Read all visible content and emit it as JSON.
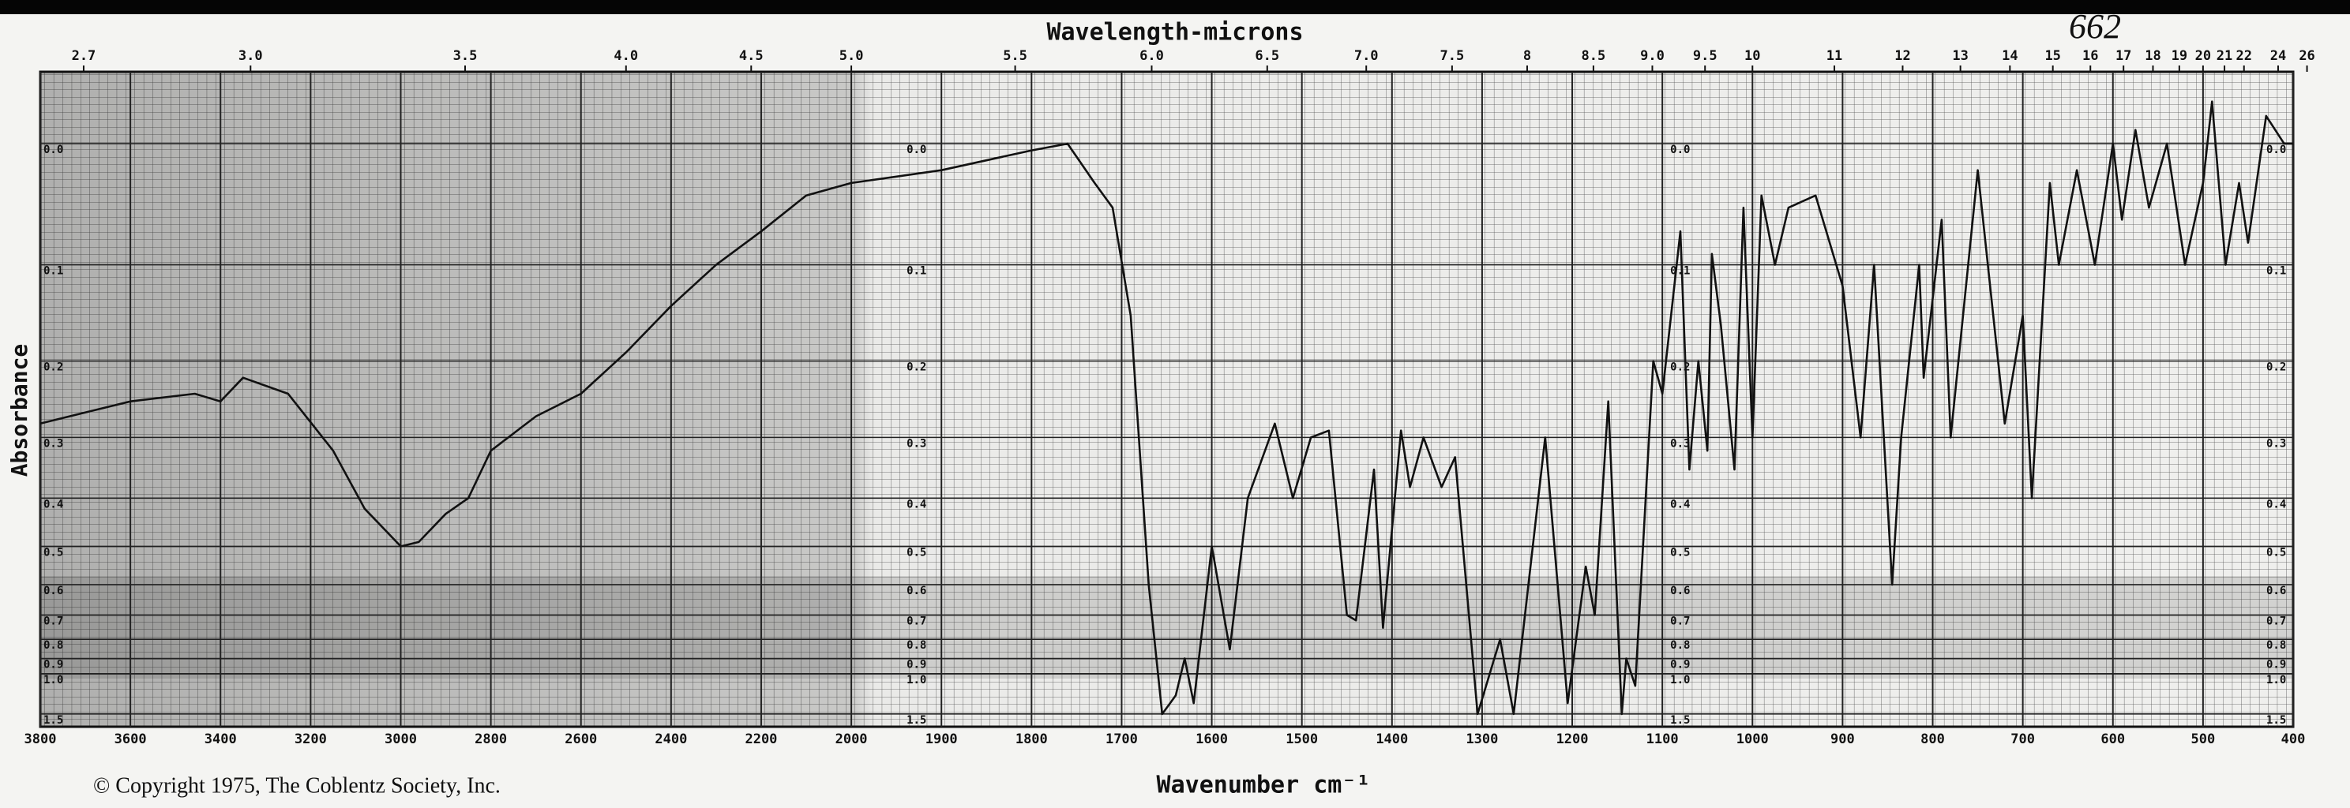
{
  "chart_data": {
    "type": "line",
    "title": "Wavelength-microns",
    "x_label": "Wavenumber cm⁻¹",
    "y_label": "Absorbance",
    "copyright": "© Copyright 1975, The Coblentz Society, Inc.",
    "annotations": [
      "662"
    ],
    "xscale": "piecewise",
    "xbreak": 2000,
    "yscale": "transmittance",
    "grid": true,
    "color": "#111111",
    "xlim": [
      3800,
      400
    ],
    "ylim": [
      -0.05,
      2.0
    ],
    "xticks": [
      3800,
      3600,
      3400,
      3200,
      3000,
      2800,
      2600,
      2400,
      2200,
      2000,
      1900,
      1800,
      1700,
      1600,
      1500,
      1400,
      1300,
      1200,
      1100,
      1000,
      900,
      800,
      700,
      600,
      500,
      400
    ],
    "micron_ticks": [
      2.7,
      {
        "value": 3,
        "label": "3.0"
      },
      3.5,
      {
        "value": 4,
        "label": "4.0"
      },
      4.5,
      {
        "value": 5,
        "label": "5.0"
      },
      5.5,
      {
        "value": 6,
        "label": "6.0"
      },
      6.5,
      {
        "value": 7,
        "label": "7.0"
      },
      7.5,
      8,
      8.5,
      {
        "value": 9,
        "label": "9.0"
      },
      9.5,
      10,
      11,
      12,
      13,
      14,
      15,
      16,
      17,
      18,
      19,
      20,
      21,
      22,
      24,
      26
    ],
    "yticks": [
      {
        "value": 0,
        "label": "0.0"
      },
      0.1,
      0.2,
      0.3,
      0.4,
      0.5,
      0.6,
      0.7,
      0.8,
      0.9,
      {
        "value": 1,
        "label": "1.0"
      },
      1.5
    ],
    "x": [
      3800,
      3600,
      3457,
      3400,
      3350,
      3250,
      3150,
      3080,
      3000,
      2960,
      2900,
      2850,
      2800,
      2700,
      2600,
      2500,
      2400,
      2300,
      2200,
      2100,
      2000,
      1900,
      1800,
      1760,
      1730,
      1710,
      1690,
      1670,
      1655,
      1640,
      1630,
      1620,
      1600,
      1580,
      1560,
      1530,
      1510,
      1490,
      1470,
      1450,
      1440,
      1420,
      1410,
      1390,
      1380,
      1365,
      1345,
      1330,
      1305,
      1280,
      1265,
      1230,
      1205,
      1185,
      1175,
      1160,
      1145,
      1140,
      1130,
      1110,
      1100,
      1080,
      1070,
      1060,
      1050,
      1045,
      1035,
      1020,
      1010,
      1000,
      990,
      975,
      960,
      930,
      900,
      880,
      865,
      845,
      835,
      815,
      810,
      790,
      780,
      750,
      720,
      700,
      690,
      670,
      660,
      640,
      620,
      600,
      590,
      575,
      560,
      540,
      520,
      500,
      490,
      475,
      460,
      450,
      430,
      410,
      400
    ],
    "values": [
      0.28,
      0.25,
      0.24,
      0.25,
      0.22,
      0.24,
      0.32,
      0.42,
      0.5,
      0.49,
      0.43,
      0.4,
      0.32,
      0.27,
      0.24,
      0.19,
      0.14,
      0.1,
      0.07,
      0.04,
      0.03,
      0.02,
      0.005,
      0.0,
      0.03,
      0.05,
      0.15,
      0.6,
      1.5,
      1.2,
      0.9,
      1.3,
      0.5,
      0.85,
      0.4,
      0.28,
      0.4,
      0.3,
      0.29,
      0.7,
      0.72,
      0.35,
      0.75,
      0.29,
      0.38,
      0.3,
      0.38,
      0.33,
      1.5,
      0.8,
      1.5,
      0.3,
      1.3,
      0.55,
      0.7,
      0.25,
      1.5,
      0.9,
      1.1,
      0.2,
      0.24,
      0.07,
      0.35,
      0.2,
      0.32,
      0.09,
      0.16,
      0.35,
      0.05,
      0.3,
      0.04,
      0.1,
      0.05,
      0.04,
      0.12,
      0.3,
      0.1,
      0.6,
      0.3,
      0.1,
      0.22,
      0.06,
      0.3,
      0.02,
      0.28,
      0.15,
      0.4,
      0.03,
      0.1,
      0.02,
      0.1,
      0.0,
      0.06,
      -0.01,
      0.05,
      0.0,
      0.1,
      0.03,
      -0.03,
      0.1,
      0.03,
      0.08,
      -0.02,
      0.0,
      0.0
    ]
  }
}
